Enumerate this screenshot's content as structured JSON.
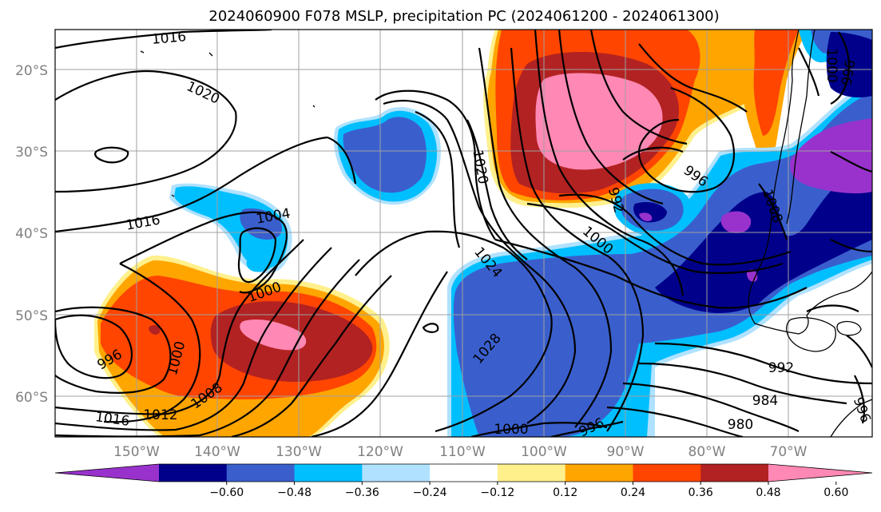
{
  "title": "2024060900 F078 MSLP, precipitation PC (2024061200 - 2024061300)",
  "lat_labels": [
    "20°S",
    "30°S",
    "40°S",
    "50°S",
    "60°S"
  ],
  "lon_labels": [
    "150°W",
    "140°W",
    "130°W",
    "120°W",
    "110°W",
    "100°W",
    "90°W",
    "80°W",
    "70°W"
  ],
  "colorbar": {
    "ticks": [
      "−0.60",
      "−0.48",
      "−0.36",
      "−0.24",
      "−0.12",
      "0.12",
      "0.24",
      "0.36",
      "0.48",
      "0.60"
    ],
    "colors": [
      "#9932cc",
      "#00008b",
      "#3a5fcd",
      "#00bfff",
      "#b0e2ff",
      "#ffffff",
      "#fff08c",
      "#ffa500",
      "#ff4500",
      "#b22222",
      "#ff88b4"
    ]
  },
  "isobar_labels": [
    "1016",
    "1020",
    "1016",
    "1004",
    "1000",
    "996",
    "1000",
    "1008",
    "1012",
    "1016",
    "1020",
    "1024",
    "1028",
    "1000",
    "996",
    "992",
    "1000",
    "996",
    "1008",
    "992",
    "984",
    "980",
    "1000",
    "996",
    "996"
  ]
}
